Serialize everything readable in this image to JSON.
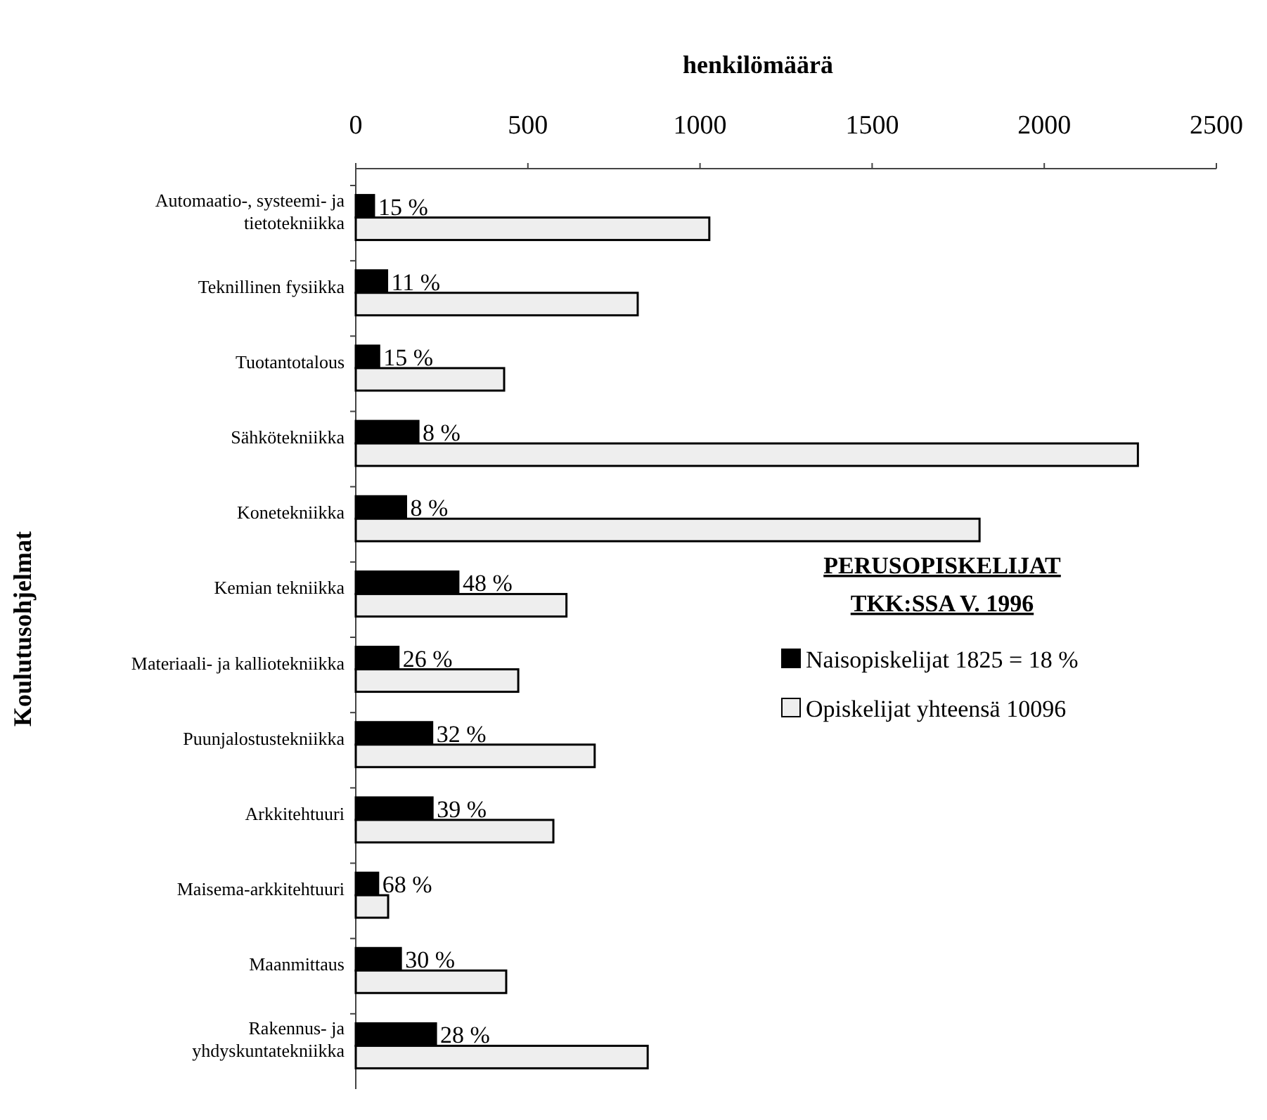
{
  "chart_data": {
    "type": "bar",
    "orientation": "horizontal",
    "title": "PERUSOPISKELIJAT TKK:SSA V. 1996",
    "xlabel": "henkilömäärä",
    "ylabel": "Koulutusohjelmat",
    "categories": [
      "Automaatio-, systeemi- ja tietotekniikka",
      "Teknillinen fysiikka",
      "Tuotantotalous",
      "Sähkötekniikka",
      "Konetekniikka",
      "Kemian tekniikka",
      "Materiaali- ja kalliotekniikka",
      "Puunjalostustekniikka",
      "Arkkitehtuuri",
      "Maisema-arkkitehtuuri",
      "Maanmittaus",
      "Rakennus- ja yhdyskuntatekniikka"
    ],
    "annotations": [
      {
        "text": "15 %",
        "x": 53,
        "y": "Automaatio-, systeemi- ja tietotekniikka"
      },
      {
        "text": "11 %",
        "x": 91,
        "y": "Teknillinen fysiikka"
      },
      {
        "text": "15 %",
        "x": 68,
        "y": "Tuotantotalous"
      },
      {
        "text": "8 %",
        "x": 182,
        "y": "Sähkötekniikka"
      },
      {
        "text": "8 %",
        "x": 146,
        "y": "Konetekniikka"
      },
      {
        "text": "48 %",
        "x": 298,
        "y": "Kemian tekniikka"
      },
      {
        "text": "26 %",
        "x": 124,
        "y": "Materiaali- ja kalliotekniikka"
      },
      {
        "text": "32 %",
        "x": 222,
        "y": "Puunjalostustekniikka"
      },
      {
        "text": "39 %",
        "x": 223,
        "y": "Arkkitehtuuri"
      },
      {
        "text": "68 %",
        "x": 65,
        "y": "Maisema-arkkitehtuuri"
      },
      {
        "text": "30 %",
        "x": 131,
        "y": "Maanmittaus"
      },
      {
        "text": "28 %",
        "x": 233,
        "y": "Rakennus- ja yhdyskuntatekniikka"
      }
    ],
    "series": [
      {
        "name": "Naisopiskelijat 1825 = 18 %",
        "color": "#000000",
        "values": [
          53,
          91,
          68,
          182,
          146,
          298,
          124,
          222,
          223,
          65,
          131,
          233
        ]
      },
      {
        "name": "Opiskelijat yhteensä 10096",
        "color": "#eeeeee",
        "values": [
          1027,
          819,
          431,
          2272,
          1812,
          612,
          472,
          694,
          574,
          94,
          437,
          848
        ]
      }
    ],
    "xlim": [
      0,
      2500
    ],
    "xticks": [
      0,
      500,
      1000,
      1500,
      2000,
      2500
    ],
    "grid": false,
    "legend": "right"
  }
}
